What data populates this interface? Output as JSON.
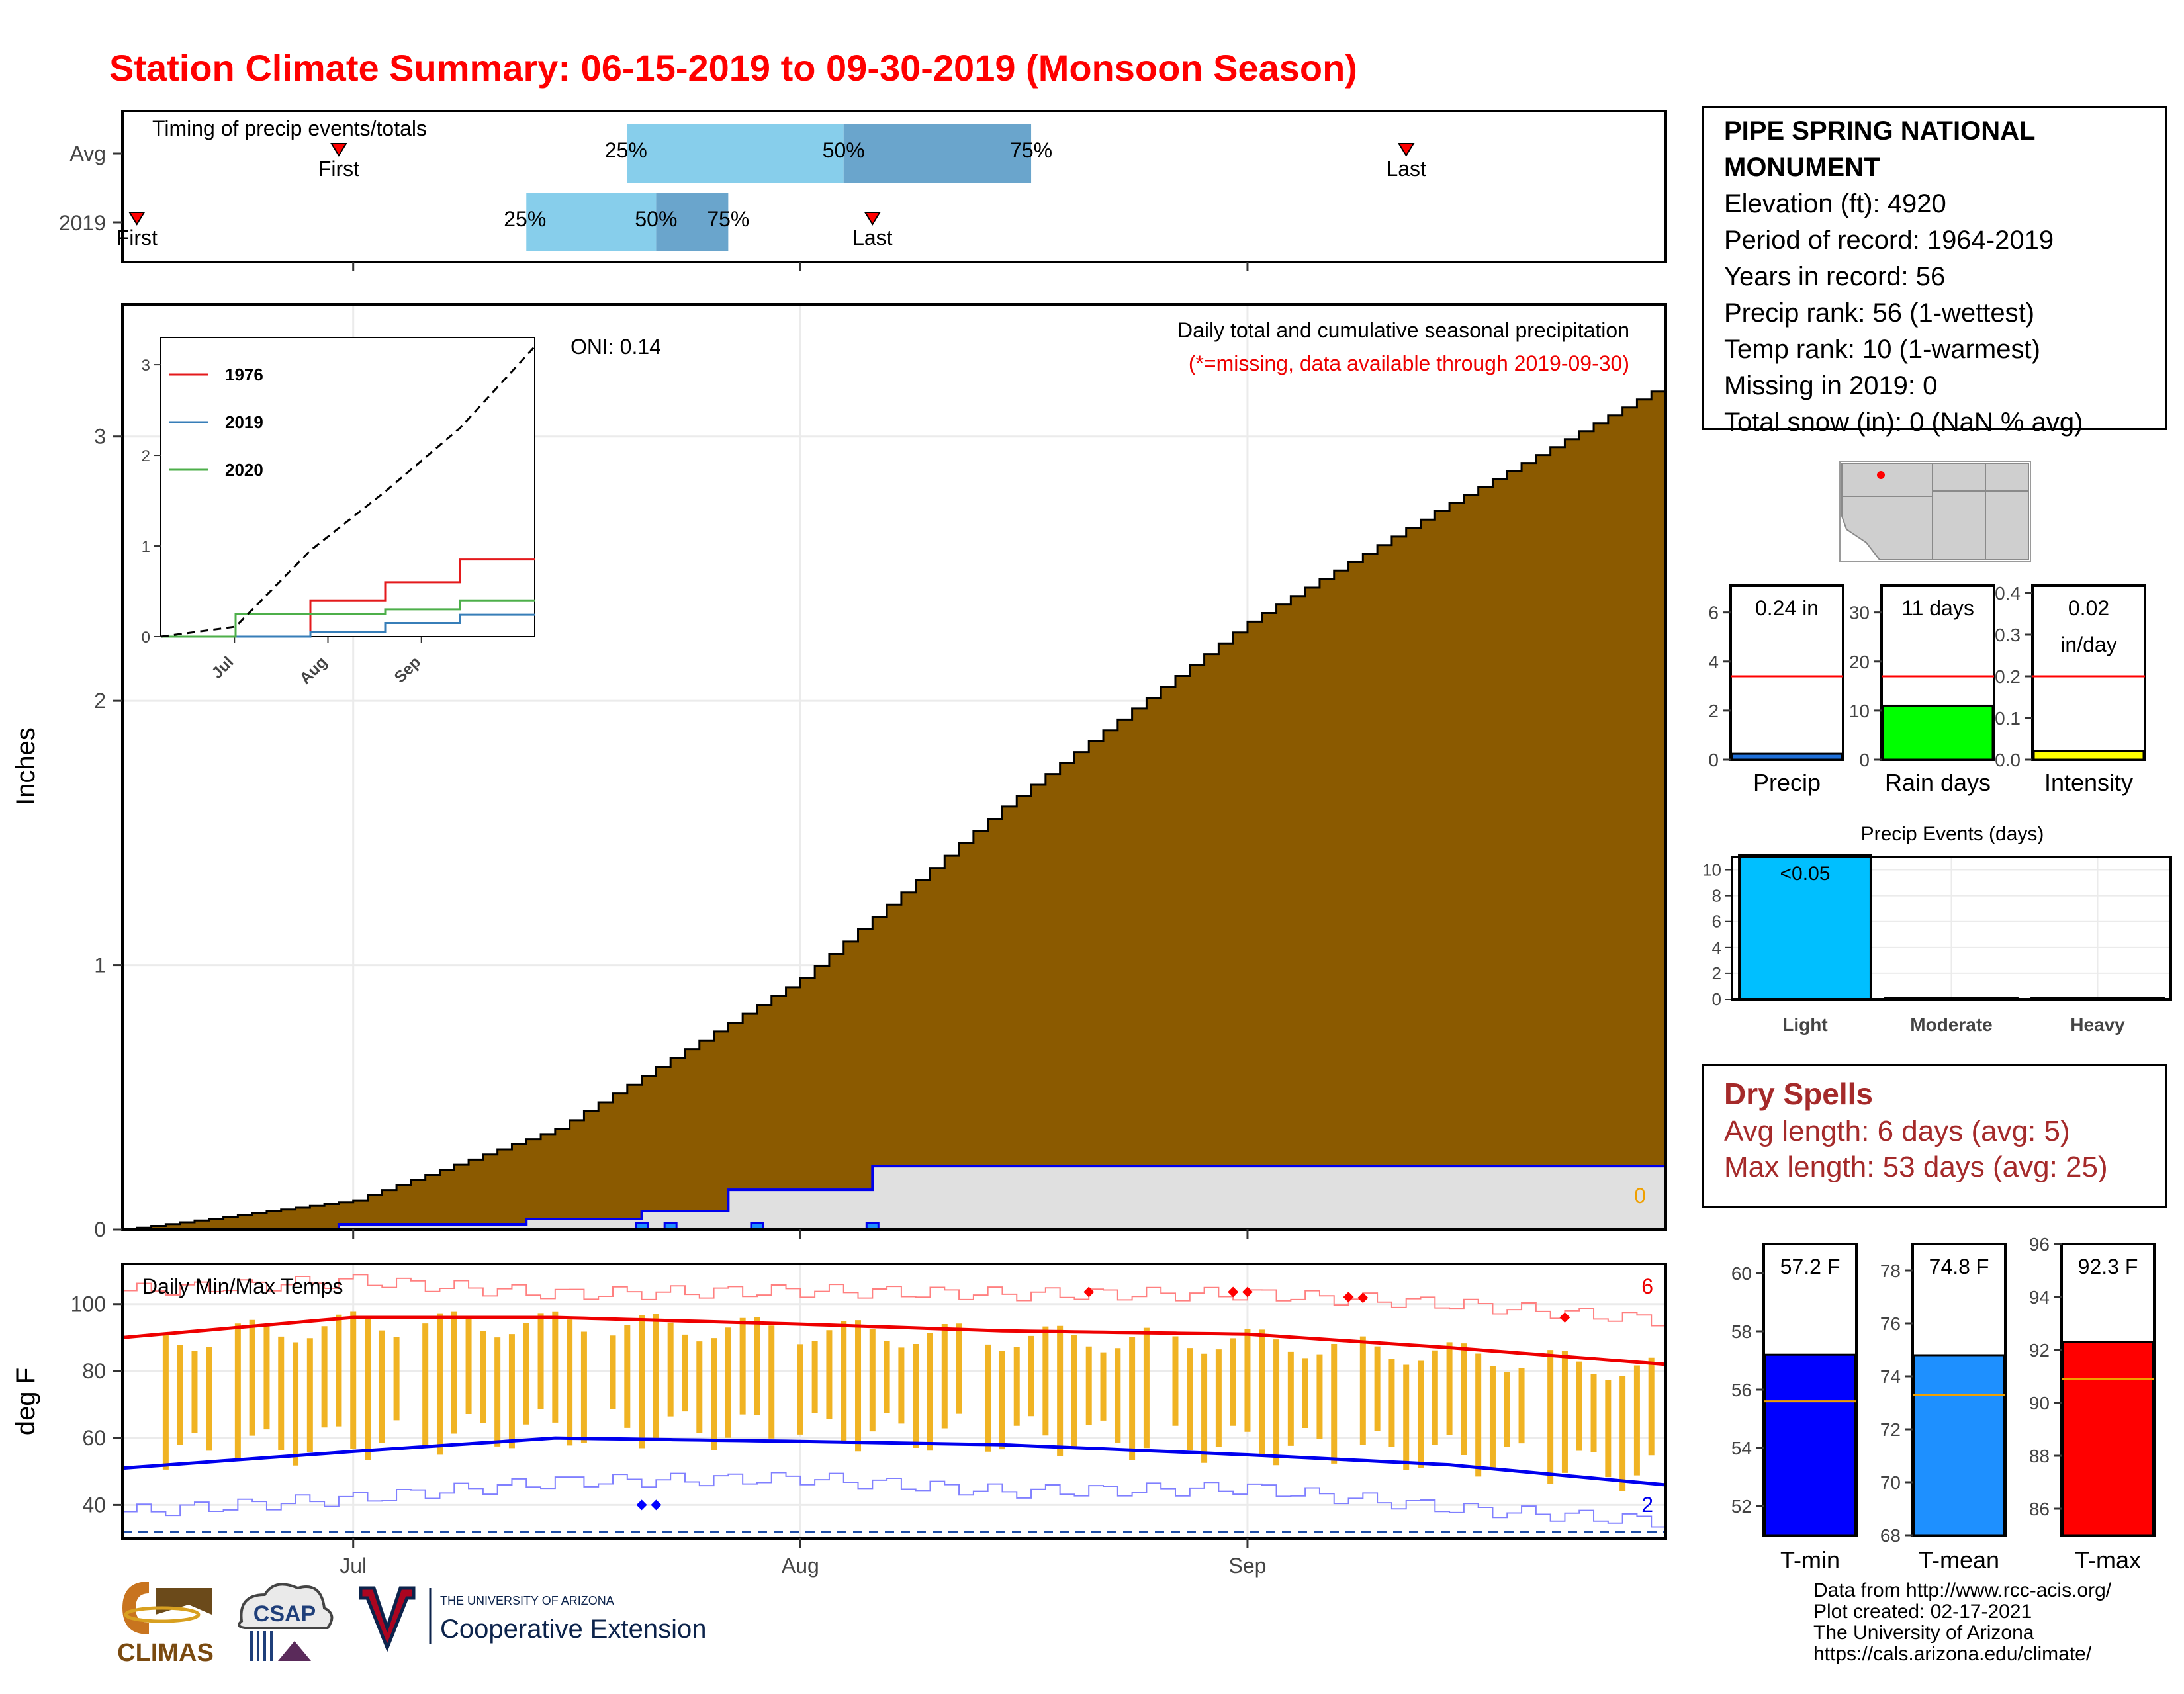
{
  "title": "Station Climate Summary: 06-15-2019 to 09-30-2019 (Monsoon Season)",
  "colors": {
    "title": "#ff0000",
    "cum_fill": "#8b5a00",
    "normal_fill": "#e0e0e0",
    "normal_line": "#0000ee",
    "pct_light": "#87ceeb",
    "pct_dark": "#6aa5cc",
    "marker": "#ff0000",
    "temp_bar": "#f0b323",
    "tmax_line": "#ee0000",
    "tmin_line": "#0000ee",
    "tmin_box": "#0000ff",
    "tmean_box": "#1e90ff",
    "tmax_box": "#ff0000",
    "raindays_box": "#00ff00",
    "intensity_box": "#ffff00",
    "light_events": "#00bfff",
    "dry_text": "#a52a2a"
  },
  "x_axis": {
    "ticks": [
      "Jul",
      "Aug",
      "Sep"
    ]
  },
  "timing": {
    "title": "Timing of precip events/totals",
    "rows": [
      {
        "label": "Avg",
        "first": "First",
        "last": "Last",
        "p25": "25%",
        "p50": "50%",
        "p75": "75%"
      },
      {
        "label": "2019",
        "first": "First",
        "last": "Last",
        "p25": "25%",
        "p50": "50%",
        "p75": "75%"
      }
    ]
  },
  "precip_panel": {
    "title": "Daily total and cumulative seasonal precipitation",
    "subtitle": "(*=missing, data available through 2019-09-30)",
    "oni": "ONI: 0.14",
    "ylabel": "Inches",
    "yticks": [
      "0",
      "1",
      "2",
      "3"
    ],
    "end_label": "0"
  },
  "inset": {
    "yticks": [
      "0",
      "1",
      "2",
      "3"
    ],
    "xticks": [
      "Jul",
      "Aug",
      "Sep"
    ],
    "legend": [
      "1976",
      "2019",
      "2020"
    ],
    "legend_colors": [
      "#e41a1c",
      "#377eb8",
      "#4daf4a"
    ]
  },
  "temp_panel": {
    "title": "Daily Min/Max Temps",
    "ylabel": "deg F",
    "yticks": [
      "40",
      "60",
      "80",
      "100"
    ],
    "count_high": "6",
    "count_low": "2"
  },
  "station": {
    "name_line1": "PIPE SPRING NATIONAL",
    "name_line2": "MONUMENT",
    "elevation": "Elevation (ft): 4920",
    "period": "Period of record: 1964-2019",
    "years": "Years in record: 56",
    "precip_rank": "Precip rank: 56 (1-wettest)",
    "temp_rank": "Temp rank: 10 (1-warmest)",
    "missing": "Missing in 2019: 0",
    "snow": "Total snow (in): 0 (NaN % avg)"
  },
  "mini_stats": [
    {
      "label": "Precip",
      "value": "0.24 in",
      "value2": "",
      "yticks": [
        "0",
        "2",
        "4",
        "6"
      ]
    },
    {
      "label": "Rain days",
      "value": "11 days",
      "value2": "",
      "yticks": [
        "0",
        "10",
        "20",
        "30"
      ]
    },
    {
      "label": "Intensity",
      "value": "0.02",
      "value2": "in/day",
      "yticks": [
        "0.0",
        "0.1",
        "0.2",
        "0.3",
        "0.4"
      ]
    }
  ],
  "events": {
    "title": "Precip Events (days)",
    "categories": [
      "Light",
      "Moderate",
      "Heavy"
    ],
    "bar_label": "<0.05",
    "yticks": [
      "0",
      "2",
      "4",
      "6",
      "8",
      "10"
    ]
  },
  "dry_spells": {
    "title": "Dry Spells",
    "avg": "Avg length: 6 days (avg: 5)",
    "max": "Max length: 53 days (avg: 25)"
  },
  "temp_stats": [
    {
      "label": "T-min",
      "value": "57.2 F",
      "yticks": [
        "52",
        "54",
        "56",
        "58",
        "60"
      ]
    },
    {
      "label": "T-mean",
      "value": "74.8 F",
      "yticks": [
        "68",
        "70",
        "72",
        "74",
        "76",
        "78"
      ]
    },
    {
      "label": "T-max",
      "value": "92.3 F",
      "yticks": [
        "86",
        "88",
        "90",
        "92",
        "94",
        "96"
      ]
    }
  ],
  "credits": {
    "line1": "Data from http://www.rcc-acis.org/",
    "line2": "Plot created: 02-17-2021",
    "line3": "The University of Arizona",
    "line4": "https://cals.arizona.edu/climate/"
  },
  "logos": {
    "climas": "CLIMAS",
    "csap": "CSAP",
    "ua_small": "THE UNIVERSITY OF ARIZONA",
    "ua_big": "Cooperative Extension"
  },
  "chart_data": [
    {
      "type": "bar",
      "title": "Timing of precip events/totals",
      "categories": [
        "Avg",
        "2019"
      ],
      "date_range": [
        "2019-06-15",
        "2019-09-30"
      ],
      "series": [
        {
          "name": "Avg",
          "first": "2019-06-30",
          "p25": "2019-07-20",
          "p50": "2019-08-04",
          "p75": "2019-08-17",
          "last": "2019-09-12"
        },
        {
          "name": "2019",
          "first": "2019-06-16",
          "p25": "2019-07-13",
          "p50": "2019-07-22",
          "p75": "2019-07-27",
          "last": "2019-08-06"
        }
      ]
    },
    {
      "type": "area",
      "title": "Daily total and cumulative seasonal precipitation",
      "ylabel": "Inches",
      "ylim": [
        0,
        3.5
      ],
      "x_range": [
        "2019-06-15",
        "2019-09-30"
      ],
      "series": [
        {
          "name": "cumulative normal",
          "x": [
            "2019-06-15",
            "2019-07-01",
            "2019-07-15",
            "2019-08-01",
            "2019-08-15",
            "2019-09-01",
            "2019-09-15",
            "2019-09-30"
          ],
          "values": [
            0.0,
            0.11,
            0.38,
            0.95,
            1.6,
            2.3,
            2.75,
            3.2
          ]
        },
        {
          "name": "cumulative 2019",
          "x": [
            "2019-06-15",
            "2019-06-30",
            "2019-07-13",
            "2019-07-21",
            "2019-07-27",
            "2019-08-06",
            "2019-09-30"
          ],
          "values": [
            0.0,
            0.02,
            0.04,
            0.07,
            0.15,
            0.24,
            0.24
          ]
        },
        {
          "name": "daily 2019",
          "x": [
            "2019-07-21",
            "2019-07-23",
            "2019-07-29",
            "2019-08-06"
          ],
          "values": [
            0.05,
            0.01,
            0.05,
            0.03
          ]
        }
      ],
      "grid": true
    },
    {
      "type": "line",
      "inset": true,
      "ylim": [
        0,
        3
      ],
      "xticks": [
        "Jul",
        "Aug",
        "Sep"
      ],
      "legend": "top-left",
      "series": [
        {
          "name": "1976",
          "values": [
            0,
            0,
            0.4,
            0.6,
            0.85,
            0.85
          ]
        },
        {
          "name": "2019",
          "values": [
            0,
            0,
            0.05,
            0.15,
            0.24,
            0.24
          ]
        },
        {
          "name": "2020",
          "values": [
            0,
            0.25,
            0.25,
            0.3,
            0.4,
            0.4
          ]
        },
        {
          "name": "normal",
          "values": [
            0,
            0.11,
            0.95,
            1.6,
            2.3,
            3.2
          ]
        }
      ]
    },
    {
      "type": "line",
      "title": "Daily Min/Max Temps",
      "ylabel": "deg F",
      "ylim": [
        30,
        112
      ],
      "series": [
        {
          "name": "normal max",
          "x": [
            "2019-06-15",
            "2019-07-01",
            "2019-07-15",
            "2019-08-01",
            "2019-08-15",
            "2019-09-01",
            "2019-09-15",
            "2019-09-30"
          ],
          "values": [
            90,
            96,
            96,
            94,
            92,
            91,
            87,
            82
          ]
        },
        {
          "name": "normal min",
          "x": [
            "2019-06-15",
            "2019-07-01",
            "2019-07-15",
            "2019-08-01",
            "2019-08-15",
            "2019-09-01",
            "2019-09-15",
            "2019-09-30"
          ],
          "values": [
            51,
            56,
            60,
            59,
            58,
            55,
            52,
            46
          ]
        },
        {
          "name": "record max",
          "values": [
            104,
            107,
            103,
            104,
            103,
            103,
            100,
            95
          ]
        },
        {
          "name": "record min",
          "values": [
            38,
            42,
            47,
            48,
            44,
            45,
            39,
            35
          ]
        }
      ],
      "days_above_record": 6,
      "days_below_record": 2
    },
    {
      "type": "bar",
      "categories": [
        "Precip",
        "Rain days",
        "Intensity"
      ],
      "values": [
        0.24,
        11,
        0.02
      ],
      "averages": [
        3.4,
        17,
        0.2
      ]
    },
    {
      "type": "bar",
      "title": "Precip Events (days)",
      "categories": [
        "Light",
        "Moderate",
        "Heavy"
      ],
      "values": [
        11,
        0,
        0
      ],
      "ylim": [
        0,
        11
      ]
    },
    {
      "type": "bar",
      "categories": [
        "T-min",
        "T-mean",
        "T-max"
      ],
      "values": [
        57.2,
        74.8,
        92.3
      ],
      "averages": [
        55.6,
        73.3,
        90.9
      ],
      "ylims": [
        [
          51,
          61
        ],
        [
          68,
          79
        ],
        [
          85,
          96
        ]
      ]
    }
  ]
}
